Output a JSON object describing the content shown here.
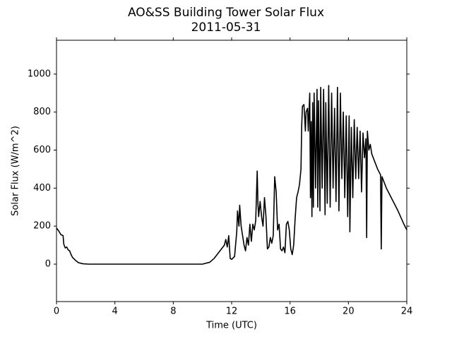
{
  "chart_data": {
    "type": "line",
    "title": "AO&SS Building Tower Solar Flux",
    "subtitle": "2011-05-31",
    "x_label": "Time (UTC)",
    "y_label": "Solar Flux (W/m^2)",
    "xlim": [
      0,
      24
    ],
    "xticks": [
      0,
      4,
      8,
      12,
      16,
      20,
      24
    ],
    "ylim": [
      -197,
      1178
    ],
    "yticks": [
      0,
      200,
      400,
      600,
      800,
      1000
    ],
    "series": [
      {
        "name": "Solar Flux",
        "color": "#000000",
        "x": [
          0,
          0.15,
          0.3,
          0.45,
          0.5,
          0.6,
          0.7,
          0.8,
          0.9,
          1.0,
          1.1,
          1.3,
          1.5,
          1.8,
          2.2,
          6,
          10,
          10.5,
          10.8,
          11.1,
          11.3,
          11.5,
          11.6,
          11.7,
          11.8,
          11.9,
          12.0,
          12.2,
          12.35,
          12.4,
          12.5,
          12.55,
          12.65,
          12.75,
          12.85,
          12.95,
          13.05,
          13.15,
          13.25,
          13.35,
          13.45,
          13.55,
          13.65,
          13.75,
          13.8,
          13.85,
          13.95,
          14.05,
          14.15,
          14.25,
          14.35,
          14.45,
          14.55,
          14.65,
          14.75,
          14.85,
          14.95,
          15.05,
          15.15,
          15.25,
          15.35,
          15.45,
          15.55,
          15.65,
          15.75,
          15.85,
          15.95,
          16.05,
          16.15,
          16.25,
          16.35,
          16.45,
          16.55,
          16.65,
          16.75,
          16.8,
          16.85,
          16.95,
          17.0,
          17.05,
          17.1,
          17.2,
          17.25,
          17.35,
          17.4,
          17.45,
          17.5,
          17.55,
          17.6,
          17.65,
          17.75,
          17.85,
          17.9,
          17.95,
          18.05,
          18.1,
          18.2,
          18.3,
          18.4,
          18.45,
          18.55,
          18.65,
          18.75,
          18.85,
          18.95,
          19.05,
          19.15,
          19.25,
          19.35,
          19.45,
          19.55,
          19.65,
          19.75,
          19.85,
          19.95,
          20.05,
          20.1,
          20.2,
          20.3,
          20.4,
          20.5,
          20.6,
          20.7,
          20.8,
          20.9,
          21.0,
          21.1,
          21.2,
          21.25,
          21.3,
          21.4,
          21.5,
          21.6,
          21.8,
          22.0,
          22.2,
          22.25,
          22.3,
          22.6,
          23.0,
          23.4,
          23.8,
          24.0
        ],
        "values": [
          190,
          175,
          155,
          150,
          105,
          85,
          90,
          75,
          70,
          50,
          35,
          20,
          8,
          2,
          0,
          0,
          0,
          10,
          30,
          60,
          80,
          100,
          130,
          90,
          150,
          30,
          25,
          40,
          170,
          280,
          200,
          310,
          200,
          150,
          100,
          70,
          140,
          100,
          210,
          120,
          210,
          180,
          230,
          490,
          320,
          250,
          330,
          250,
          200,
          350,
          250,
          80,
          90,
          140,
          110,
          150,
          460,
          380,
          180,
          210,
          80,
          70,
          90,
          60,
          210,
          225,
          180,
          80,
          50,
          100,
          240,
          350,
          380,
          420,
          500,
          730,
          830,
          840,
          780,
          700,
          800,
          820,
          700,
          900,
          350,
          750,
          250,
          850,
          300,
          900,
          400,
          920,
          300,
          860,
          280,
          930,
          400,
          920,
          260,
          850,
          320,
          940,
          300,
          900,
          400,
          820,
          330,
          930,
          280,
          900,
          450,
          800,
          350,
          780,
          250,
          780,
          170,
          720,
          350,
          760,
          450,
          720,
          450,
          700,
          380,
          690,
          560,
          660,
          140,
          700,
          600,
          630,
          580,
          540,
          500,
          470,
          80,
          460,
          400,
          340,
          280,
          210,
          180
        ]
      }
    ]
  }
}
